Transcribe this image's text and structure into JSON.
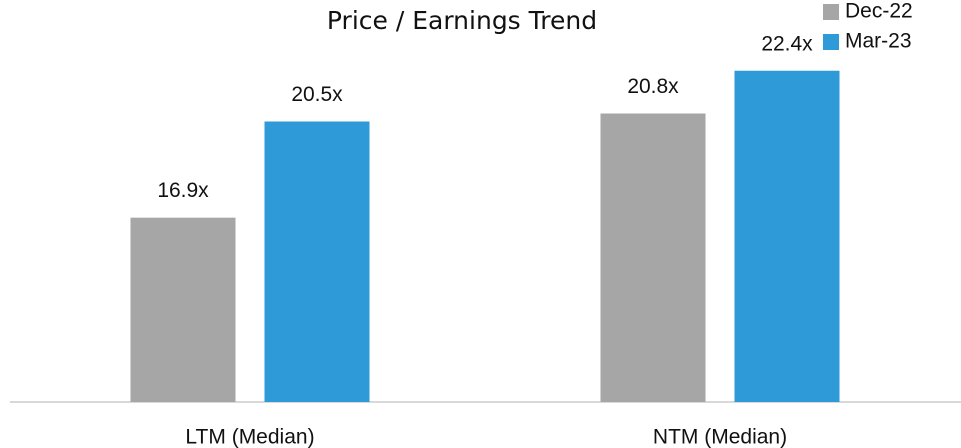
{
  "chart_data": {
    "type": "bar",
    "title": "Price / Earnings Trend",
    "categories": [
      "LTM (Median)",
      "NTM (Median)"
    ],
    "series": [
      {
        "name": "Dec-22",
        "color": "#a6a6a6",
        "values": [
          16.9,
          20.8
        ],
        "value_labels": [
          "16.9x",
          "20.8x"
        ]
      },
      {
        "name": "Mar-23",
        "color": "#2e9ad8",
        "values": [
          20.5,
          22.4
        ],
        "value_labels": [
          "20.5x",
          "22.4x"
        ]
      }
    ],
    "ylim": [
      10,
      24
    ],
    "legend": "top-right"
  }
}
